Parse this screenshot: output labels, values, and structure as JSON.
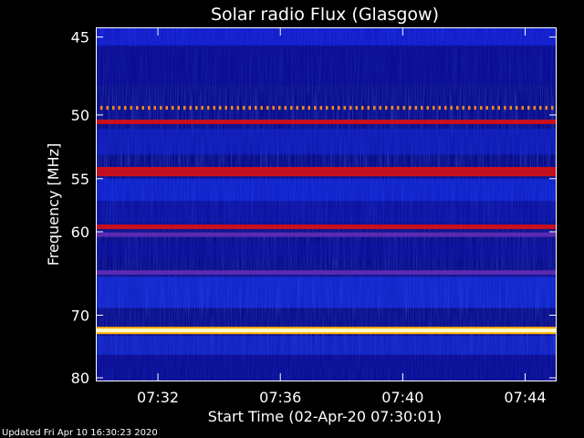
{
  "chart_data": {
    "type": "heatmap",
    "title": "Solar radio Flux (Glasgow)",
    "xlabel": "Start Time (02-Apr-20 07:30:01)",
    "ylabel": "Frequency [MHz]",
    "x_ticks": [
      "07:32",
      "07:36",
      "07:40",
      "07:44"
    ],
    "x_tick_minutes": [
      2,
      6,
      10,
      14
    ],
    "xlim_minutes": [
      0,
      15
    ],
    "y_ticks": [
      45,
      50,
      55,
      60,
      70,
      80
    ],
    "ylim": [
      44.5,
      80.5
    ],
    "y_scale": "reciprocal",
    "bands_mhz": [
      {
        "freq": 49.5,
        "level": "orange",
        "pattern": "dotted"
      },
      {
        "freq": 50.5,
        "level": "red"
      },
      {
        "freq": 54.2,
        "level": "red"
      },
      {
        "freq": 54.6,
        "level": "red"
      },
      {
        "freq": 59.5,
        "level": "red"
      },
      {
        "freq": 60.3,
        "level": "violet"
      },
      {
        "freq": 64.5,
        "level": "violet"
      },
      {
        "freq": 72.2,
        "level": "white"
      }
    ],
    "colors": {
      "background": "#000000",
      "low": "#08087a",
      "mid": "#1c3cff",
      "high": "#d00010",
      "peak": "#fff8c8"
    }
  },
  "footer": {
    "updated": "Updated Fri Apr 10 16:30:23 2020"
  }
}
